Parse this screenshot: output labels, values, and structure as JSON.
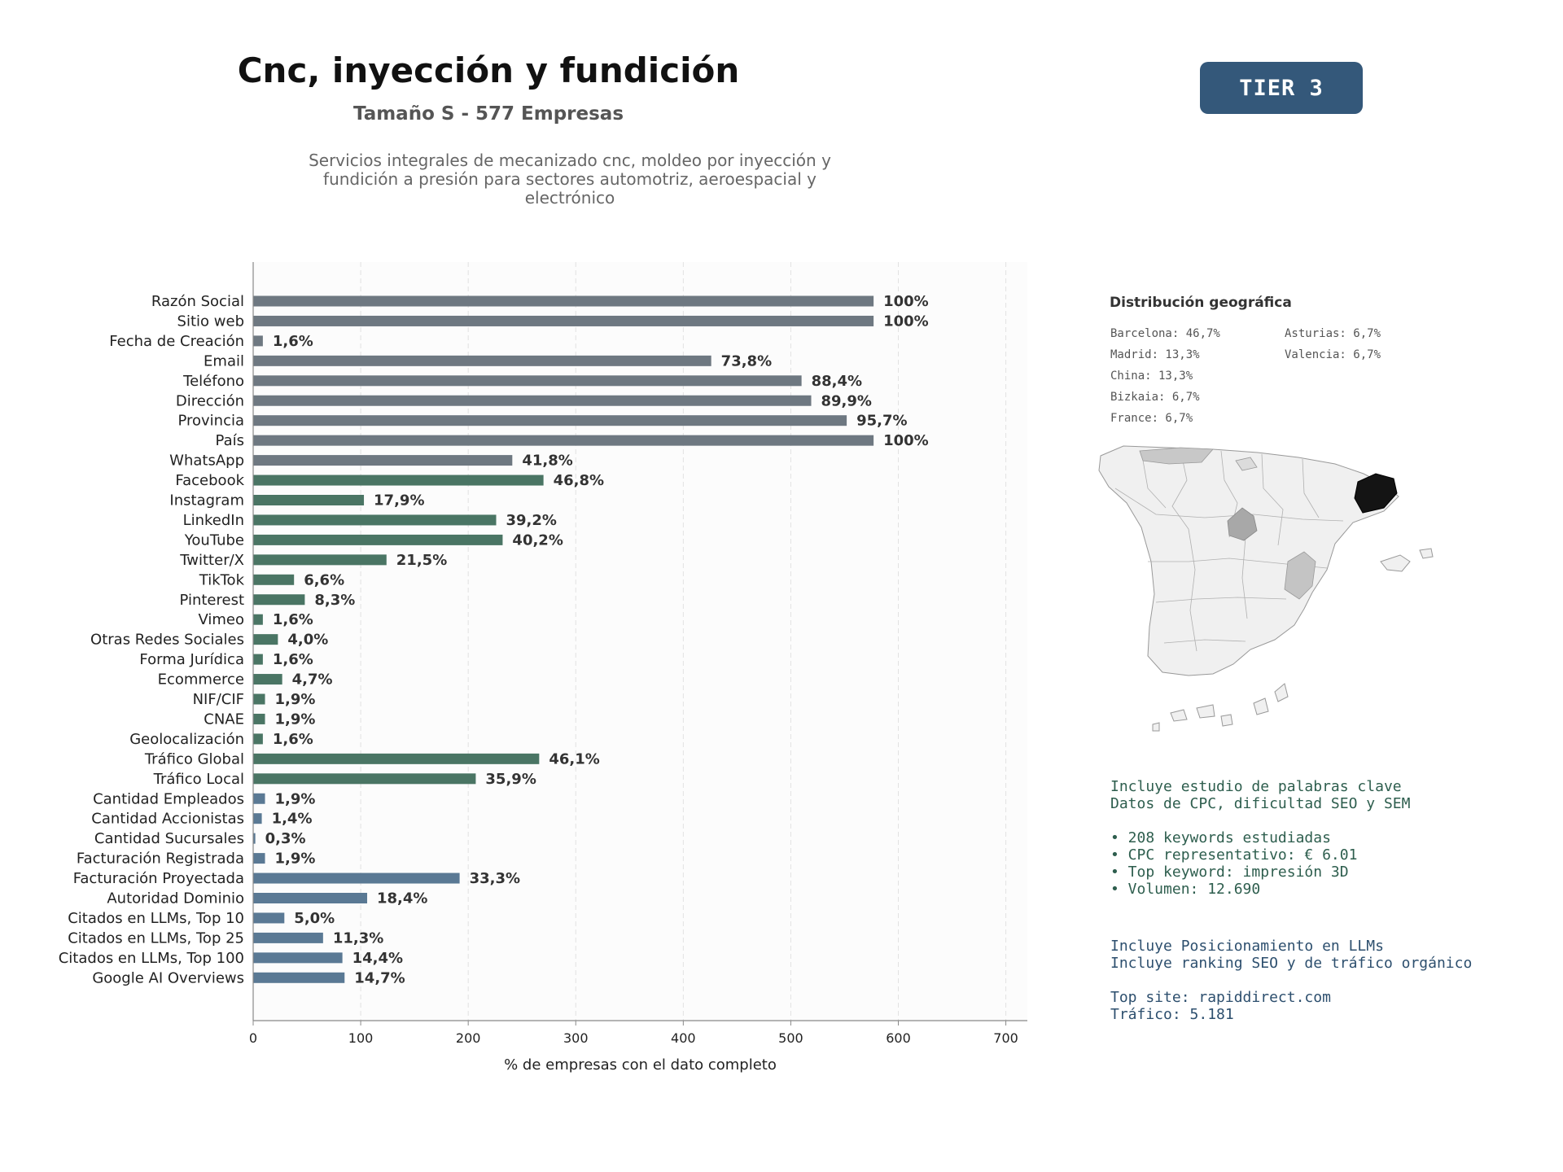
{
  "header": {
    "title": "Cnc, inyección y fundición",
    "subtitle": "Tamaño S - 577 Empresas",
    "description": "Servicios integrales de mecanizado cnc, moldeo por inyección y fundición a presión para sectores automotriz, aeroespacial y electrónico",
    "tier_label": "TIER 3"
  },
  "colors": {
    "gray": "#6e7881",
    "green": "#4a7564",
    "blue": "#5a7994",
    "tier_bg": "#34587a"
  },
  "chart_data": {
    "type": "bar",
    "orientation": "horizontal",
    "xlabel": "% de empresas con el dato completo",
    "xlim": [
      0,
      720
    ],
    "xticks": [
      0,
      100,
      200,
      300,
      400,
      500,
      600,
      700
    ],
    "grid": true,
    "categories": [
      "Razón Social",
      "Sitio web",
      "Fecha de Creación",
      "Email",
      "Teléfono",
      "Dirección",
      "Provincia",
      "País",
      "WhatsApp",
      "Facebook",
      "Instagram",
      "LinkedIn",
      "YouTube",
      "Twitter/X",
      "TikTok",
      "Pinterest",
      "Vimeo",
      "Otras Redes Sociales",
      "Forma Jurídica",
      "Ecommerce",
      "NIF/CIF",
      "CNAE",
      "Geolocalización",
      "Tráfico Global",
      "Tráfico Local",
      "Cantidad Empleados",
      "Cantidad Accionistas",
      "Cantidad Sucursales",
      "Facturación Registrada",
      "Facturación Proyectada",
      "Autoridad Dominio",
      "Citados en LLMs, Top 10",
      "Citados en LLMs, Top 25",
      "Citados en LLMs, Top 100",
      "Google AI Overviews"
    ],
    "values": [
      577,
      577,
      9,
      426,
      510,
      519,
      552,
      577,
      241,
      270,
      103,
      226,
      232,
      124,
      38,
      48,
      9,
      23,
      9,
      27,
      11,
      11,
      9,
      266,
      207,
      11,
      8,
      2,
      11,
      192,
      106,
      29,
      65,
      83,
      85
    ],
    "labels": [
      "100%",
      "100%",
      "1,6%",
      "73,8%",
      "88,4%",
      "89,9%",
      "95,7%",
      "100%",
      "41,8%",
      "46,8%",
      "17,9%",
      "39,2%",
      "40,2%",
      "21,5%",
      "6,6%",
      "8,3%",
      "1,6%",
      "4,0%",
      "1,6%",
      "4,7%",
      "1,9%",
      "1,9%",
      "1,6%",
      "46,1%",
      "35,9%",
      "1,9%",
      "1,4%",
      "0,3%",
      "1,9%",
      "33,3%",
      "18,4%",
      "5,0%",
      "11,3%",
      "14,4%",
      "14,7%"
    ],
    "groups": [
      "gray",
      "gray",
      "gray",
      "gray",
      "gray",
      "gray",
      "gray",
      "gray",
      "gray",
      "green",
      "green",
      "green",
      "green",
      "green",
      "green",
      "green",
      "green",
      "green",
      "green",
      "green",
      "green",
      "green",
      "green",
      "green",
      "green",
      "blue",
      "blue",
      "blue",
      "blue",
      "blue",
      "blue",
      "blue",
      "blue",
      "blue",
      "blue"
    ]
  },
  "geo": {
    "title": "Distribución geográfica",
    "col1": [
      "Barcelona: 46,7%",
      "Madrid: 13,3%",
      "China: 13,3%",
      "Bizkaia: 6,7%",
      "France: 6,7%"
    ],
    "col2": [
      "Asturias: 6,7%",
      "Valencia: 6,7%"
    ]
  },
  "keywords": {
    "line1": "Incluye estudio de palabras clave",
    "line2": "Datos de CPC, dificultad SEO y SEM",
    "bullet1": "• 208 keywords estudiadas",
    "bullet2": "• CPC representativo: € 6.01",
    "bullet3": "• Top keyword: impresión 3D",
    "bullet4": "• Volumen: 12.690"
  },
  "llm": {
    "line1": "Incluye Posicionamiento en LLMs",
    "line2": "Incluye ranking SEO y de tráfico orgánico",
    "top_site": "Top site: rapiddirect.com",
    "traffic": "Tráfico: 5.181"
  }
}
